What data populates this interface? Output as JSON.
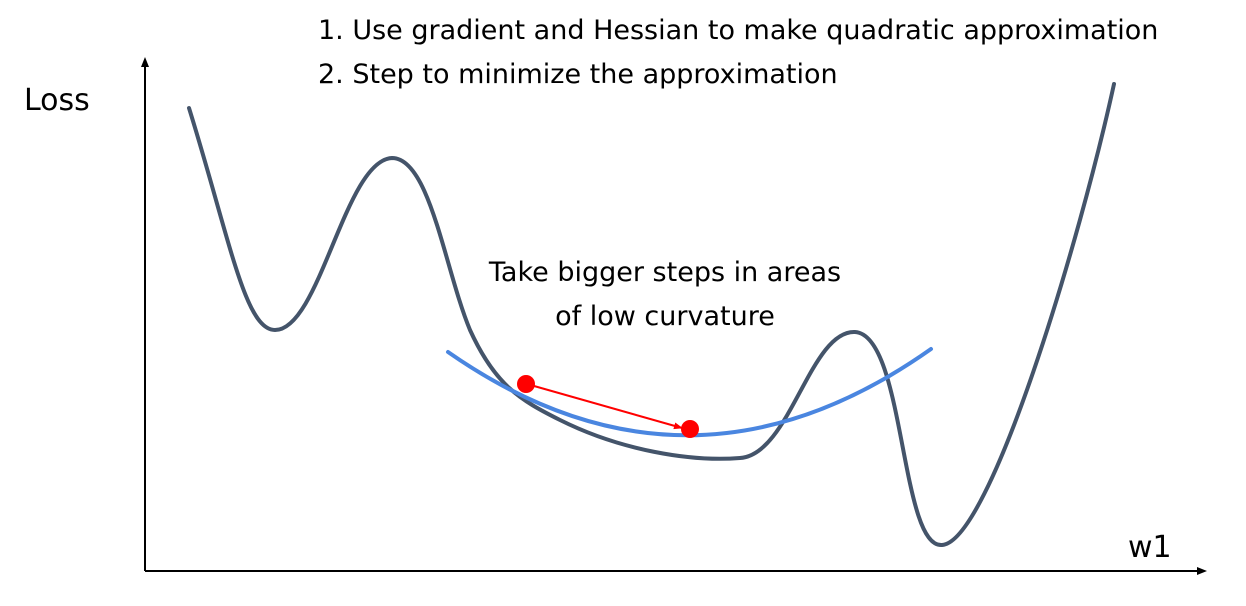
{
  "steps": [
    "1. Use gradient and Hessian to make quadratic approximation",
    "2. Step to minimize the approximation"
  ],
  "axes": {
    "y_label": "Loss",
    "x_label": "w1"
  },
  "annotation": {
    "line1": "Take bigger steps in areas",
    "line2": "of low curvature"
  },
  "colors": {
    "loss_curve": "#44546a",
    "quadratic_approximation": "#4a86e0",
    "step": "#ff0000",
    "axes": "#000000"
  }
}
